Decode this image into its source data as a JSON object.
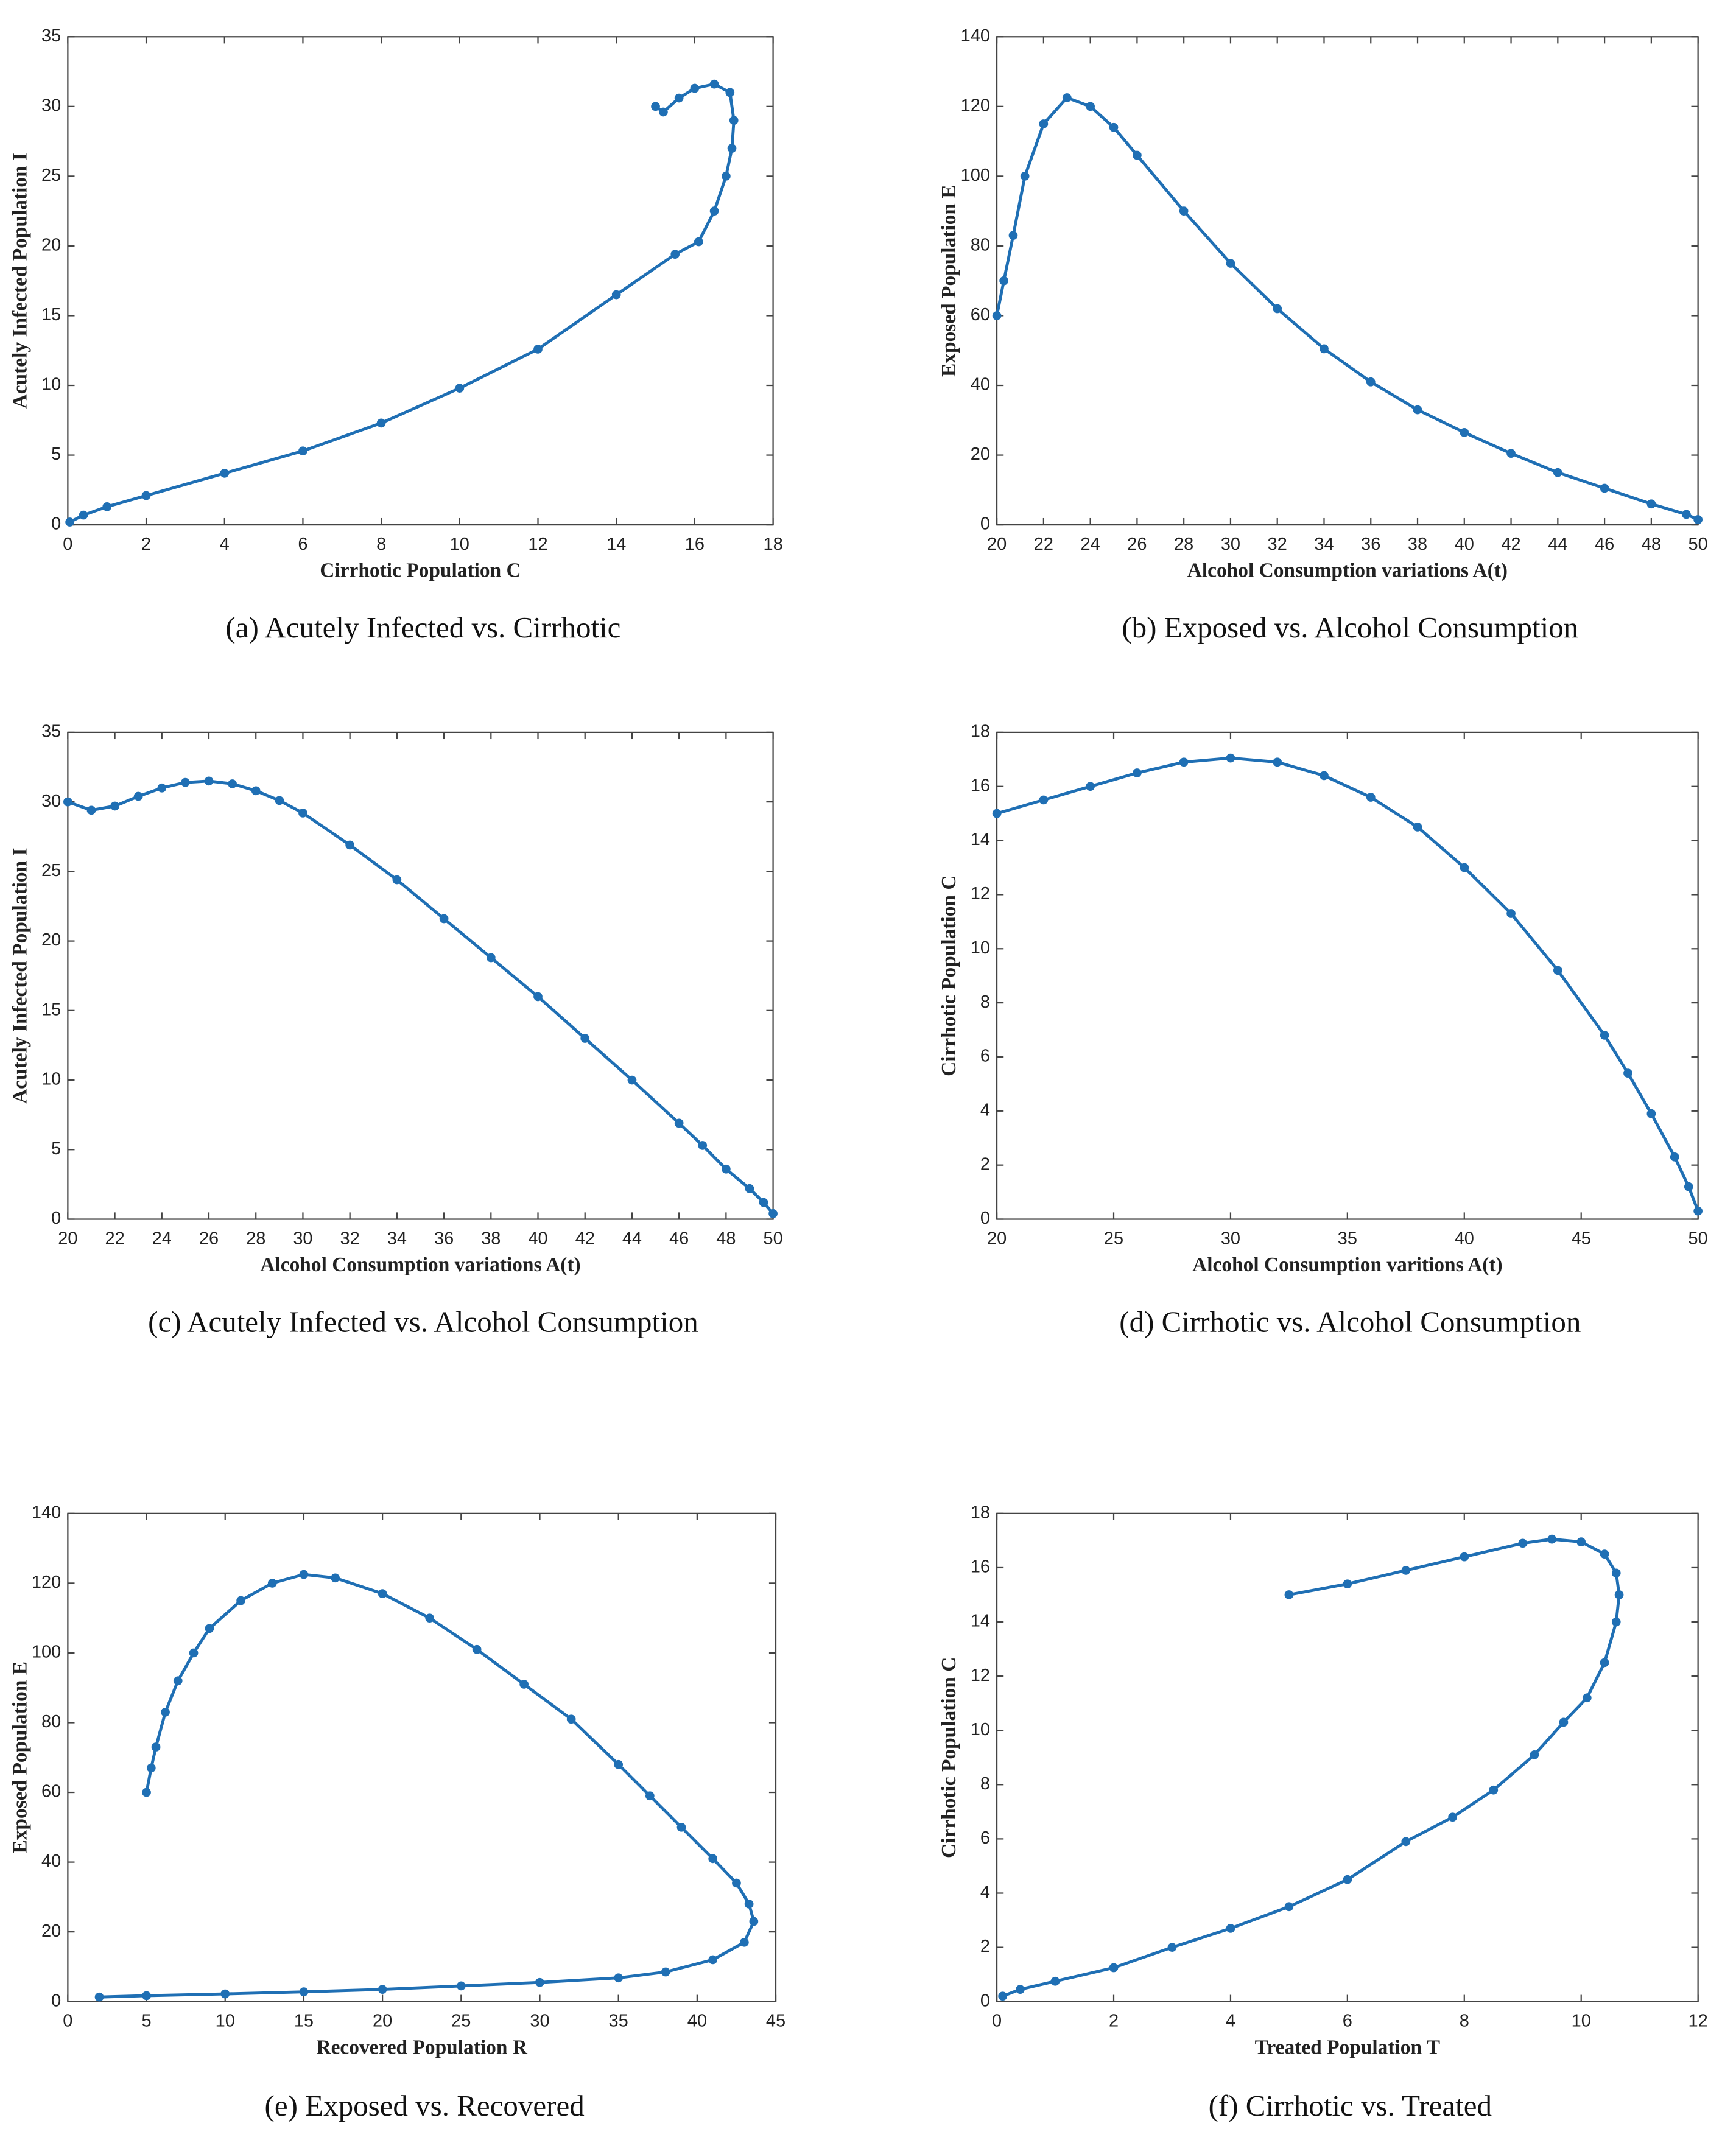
{
  "chart_data": [
    {
      "type": "line",
      "caption": "(a) Acutely Infected vs. Cirrhotic",
      "xlabel": "Cirrhotic Population C",
      "ylabel": "Acutely Infected Population I",
      "color": "#1f6fb4",
      "x": [
        15.0,
        15.2,
        15.6,
        16.0,
        16.5,
        16.9,
        17.0,
        16.95,
        16.8,
        16.5,
        16.1,
        15.5,
        14.0,
        12.0,
        10.0,
        8.0,
        6.0,
        4.0,
        2.0,
        1.0,
        0.4,
        0.05
      ],
      "values": [
        30.0,
        29.6,
        30.6,
        31.3,
        31.6,
        31.0,
        29.0,
        27.0,
        25.0,
        22.5,
        20.3,
        19.4,
        16.5,
        12.6,
        9.8,
        7.3,
        5.3,
        3.7,
        2.1,
        1.3,
        0.7,
        0.2
      ],
      "xlim": [
        0,
        18
      ],
      "xticks": [
        0,
        2,
        4,
        6,
        8,
        10,
        12,
        14,
        16,
        18
      ],
      "ylim": [
        0,
        35
      ],
      "yticks": [
        0,
        5,
        10,
        15,
        20,
        25,
        30,
        35
      ]
    },
    {
      "type": "line",
      "caption": "(b) Exposed vs. Alcohol Consumption",
      "xlabel": "Alcohol Consumption variations A(t)",
      "ylabel": "Exposed Population E",
      "color": "#1f6fb4",
      "x": [
        20,
        20.3,
        20.7,
        21.2,
        22,
        23,
        24,
        25,
        26,
        28,
        30,
        32,
        34,
        36,
        38,
        40,
        42,
        44,
        46,
        48,
        49.5,
        50
      ],
      "values": [
        60,
        70,
        83,
        100,
        115,
        122.5,
        120,
        114,
        106,
        90,
        75,
        62,
        50.5,
        41,
        33,
        26.5,
        20.5,
        15,
        10.5,
        6,
        3,
        1.5
      ],
      "xlim": [
        20,
        50
      ],
      "xticks": [
        20,
        22,
        24,
        26,
        28,
        30,
        32,
        34,
        36,
        38,
        40,
        42,
        44,
        46,
        48,
        50
      ],
      "ylim": [
        0,
        140
      ],
      "yticks": [
        0,
        20,
        40,
        60,
        80,
        100,
        120,
        140
      ]
    },
    {
      "type": "line",
      "caption": "(c) Acutely Infected vs. Alcohol Consumption",
      "xlabel": "Alcohol Consumption variations A(t)",
      "ylabel": "Acutely Infected Population I",
      "color": "#1f6fb4",
      "x": [
        20,
        21,
        22,
        23,
        24,
        25,
        26,
        27,
        28,
        29,
        30,
        32,
        34,
        36,
        38,
        40,
        42,
        44,
        46,
        47,
        48,
        49,
        49.6,
        50
      ],
      "values": [
        30,
        29.4,
        29.7,
        30.4,
        31,
        31.4,
        31.5,
        31.3,
        30.8,
        30.1,
        29.2,
        26.9,
        24.4,
        21.6,
        18.8,
        16.0,
        13.0,
        10.0,
        6.9,
        5.3,
        3.6,
        2.2,
        1.2,
        0.4
      ],
      "xlim": [
        20,
        50
      ],
      "xticks": [
        20,
        22,
        24,
        26,
        28,
        30,
        32,
        34,
        36,
        38,
        40,
        42,
        44,
        46,
        48,
        50
      ],
      "ylim": [
        0,
        35
      ],
      "yticks": [
        0,
        5,
        10,
        15,
        20,
        25,
        30,
        35
      ]
    },
    {
      "type": "line",
      "caption": "(d) Cirrhotic vs. Alcohol Consumption",
      "xlabel": "Alcohol Consumption varitions A(t)",
      "ylabel": "Cirrhotic Population C",
      "color": "#1f6fb4",
      "x": [
        20,
        22,
        24,
        26,
        28,
        30,
        32,
        34,
        36,
        38,
        40,
        42,
        44,
        46,
        47,
        48,
        49,
        49.6,
        50
      ],
      "values": [
        15,
        15.5,
        16,
        16.5,
        16.9,
        17.05,
        16.9,
        16.4,
        15.6,
        14.5,
        13.0,
        11.3,
        9.2,
        6.8,
        5.4,
        3.9,
        2.3,
        1.2,
        0.3
      ],
      "xlim": [
        20,
        50
      ],
      "xticks": [
        20,
        25,
        30,
        35,
        40,
        45,
        50
      ],
      "ylim": [
        0,
        18
      ],
      "yticks": [
        0,
        2,
        4,
        6,
        8,
        10,
        12,
        14,
        16,
        18
      ]
    },
    {
      "type": "line",
      "caption": "(e) Exposed vs. Recovered",
      "xlabel": "Recovered Population R",
      "ylabel": "Exposed Population E",
      "color": "#1f6fb4",
      "x": [
        5,
        5.3,
        5.6,
        6.2,
        7,
        8,
        9,
        11,
        13,
        15,
        17,
        20,
        23,
        26,
        29,
        32,
        35,
        37,
        39,
        41,
        42.5,
        43.3,
        43.6,
        43,
        41,
        38,
        35,
        30,
        25,
        20,
        15,
        10,
        5,
        2
      ],
      "values": [
        60,
        67,
        73,
        83,
        92,
        100,
        107,
        115,
        120,
        122.5,
        121.5,
        117,
        110,
        101,
        91,
        81,
        68,
        59,
        50,
        41,
        34,
        28,
        23,
        17,
        12,
        8.5,
        6.8,
        5.5,
        4.5,
        3.5,
        2.8,
        2.2,
        1.7,
        1.3
      ],
      "xlim": [
        0,
        45
      ],
      "xticks": [
        0,
        5,
        10,
        15,
        20,
        25,
        30,
        35,
        40,
        45
      ],
      "ylim": [
        0,
        140
      ],
      "yticks": [
        0,
        20,
        40,
        60,
        80,
        100,
        120,
        140
      ]
    },
    {
      "type": "line",
      "caption": "(f) Cirrhotic vs. Treated",
      "xlabel": "Treated Population T",
      "ylabel": "Cirrhotic Population C",
      "color": "#1f6fb4",
      "x": [
        5,
        6,
        7,
        8,
        9,
        9.5,
        10,
        10.4,
        10.6,
        10.65,
        10.6,
        10.4,
        10.1,
        9.7,
        9.2,
        8.5,
        7.8,
        7,
        6,
        5,
        4,
        3,
        2,
        1,
        0.4,
        0.1
      ],
      "values": [
        15,
        15.4,
        15.9,
        16.4,
        16.9,
        17.05,
        16.95,
        16.5,
        15.8,
        15,
        14,
        12.5,
        11.2,
        10.3,
        9.1,
        7.8,
        6.8,
        5.9,
        4.5,
        3.5,
        2.7,
        2.0,
        1.25,
        0.75,
        0.45,
        0.2
      ],
      "xlim": [
        0,
        12
      ],
      "xticks": [
        0,
        2,
        4,
        6,
        8,
        10,
        12
      ],
      "ylim": [
        0,
        18
      ],
      "yticks": [
        0,
        2,
        4,
        6,
        8,
        10,
        12,
        14,
        16,
        18
      ]
    }
  ]
}
